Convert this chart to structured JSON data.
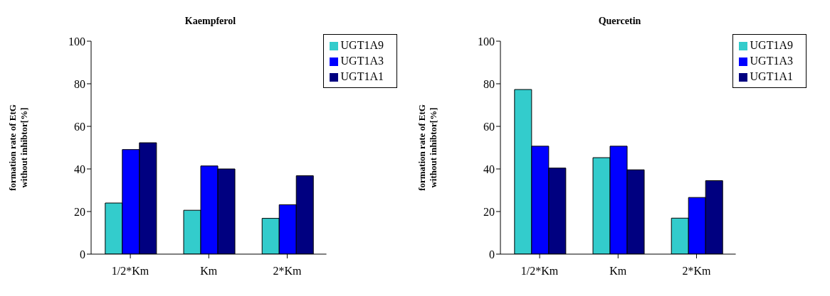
{
  "chart_data": [
    {
      "type": "bar",
      "title": "Kaempferol",
      "ylabel": "formation rate of EtG without inhibtor[%]",
      "categories": [
        "1/2*Km",
        "Km",
        "2*Km"
      ],
      "series": [
        {
          "name": "UGT1A9",
          "color": "#33cccc",
          "values": [
            24.0,
            20.6,
            16.8
          ]
        },
        {
          "name": "UGT1A3",
          "color": "#0000ff",
          "values": [
            49.1,
            41.4,
            23.2
          ]
        },
        {
          "name": "UGT1A1",
          "color": "#000080",
          "values": [
            52.3,
            40.0,
            36.8
          ]
        }
      ],
      "ylim": [
        0,
        100
      ],
      "yticks": [
        0,
        20,
        40,
        60,
        80,
        100
      ],
      "grid": false,
      "legend": "top right"
    },
    {
      "type": "bar",
      "title": "Quercetin",
      "ylabel": "formation rate of EtG without inhibtor[%]",
      "categories": [
        "1/2*Km",
        "Km",
        "2*Km"
      ],
      "series": [
        {
          "name": "UGT1A9",
          "color": "#33cccc",
          "values": [
            77.3,
            45.3,
            16.9
          ]
        },
        {
          "name": "UGT1A3",
          "color": "#0000ff",
          "values": [
            50.7,
            50.7,
            26.6
          ]
        },
        {
          "name": "UGT1A1",
          "color": "#000080",
          "values": [
            40.4,
            39.6,
            34.5
          ]
        }
      ],
      "ylim": [
        0,
        100
      ],
      "yticks": [
        0,
        20,
        40,
        60,
        80,
        100
      ],
      "grid": false,
      "legend": "top right"
    }
  ]
}
